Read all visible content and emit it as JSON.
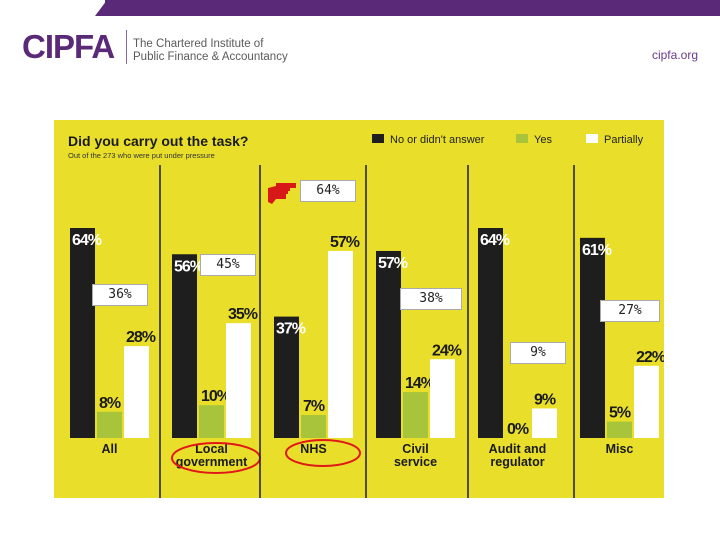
{
  "header": {
    "logo": "CIPFA",
    "tagline_line1": "The Chartered Institute of",
    "tagline_line2": "Public Finance & Accountancy",
    "site": "cipfa.org"
  },
  "colors": {
    "brand": "#5a2a78",
    "chart_bg": "#e9df2a",
    "no": "#1e1e1e",
    "yes": "#a8c43a",
    "partially": "#ffffff"
  },
  "chart_data": {
    "type": "bar",
    "title": "Did you carry out the task?",
    "subtitle": "Out of the 273 who were put under pressure",
    "categories": [
      "All",
      "Local government",
      "NHS",
      "Civil service",
      "Audit and regulator",
      "Misc"
    ],
    "category_lines": [
      [
        "All"
      ],
      [
        "Local",
        "government"
      ],
      [
        "NHS"
      ],
      [
        "Civil",
        "service"
      ],
      [
        "Audit and",
        "regulator"
      ],
      [
        "Misc"
      ]
    ],
    "series": [
      {
        "name": "No or didn't answer",
        "values": [
          64,
          56,
          37,
          57,
          64,
          61
        ]
      },
      {
        "name": "Yes",
        "values": [
          8,
          10,
          7,
          14,
          0,
          5
        ]
      },
      {
        "name": "Partially",
        "values": [
          28,
          35,
          57,
          24,
          9,
          22
        ]
      }
    ],
    "value_suffix": "%",
    "ylim": [
      0,
      70
    ],
    "grid": false,
    "legend": "top-right"
  },
  "annotations": [
    {
      "text": "64%"
    },
    {
      "text": "45%"
    },
    {
      "text": "36%"
    },
    {
      "text": "38%"
    },
    {
      "text": "27%"
    },
    {
      "text": "9%"
    }
  ],
  "icons": {
    "pointer": "pointing-hand-icon"
  }
}
